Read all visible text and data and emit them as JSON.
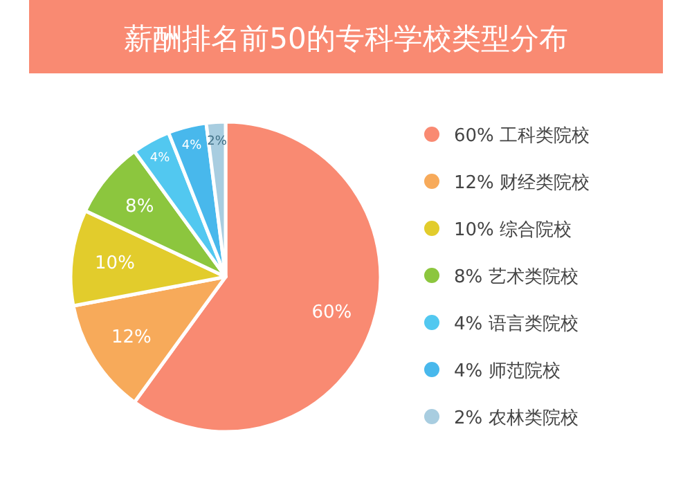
{
  "chart_data": {
    "type": "pie",
    "title": "薪酬排名前50的专科学校类型分布",
    "categories": [
      "工科类院校",
      "财经类院校",
      "综合院校",
      "艺术类院校",
      "语言类院校",
      "师范院校",
      "农林类院校"
    ],
    "values": [
      60,
      12,
      10,
      8,
      4,
      4,
      2
    ],
    "colors": [
      "#f98a72",
      "#f7aa5a",
      "#e2cc2c",
      "#8cc63e",
      "#52c8f0",
      "#48b8ec",
      "#a8cde0"
    ],
    "value_labels": [
      "60%",
      "12%",
      "10%",
      "8%",
      "4%",
      "4%",
      "2%"
    ],
    "legend": "right"
  }
}
